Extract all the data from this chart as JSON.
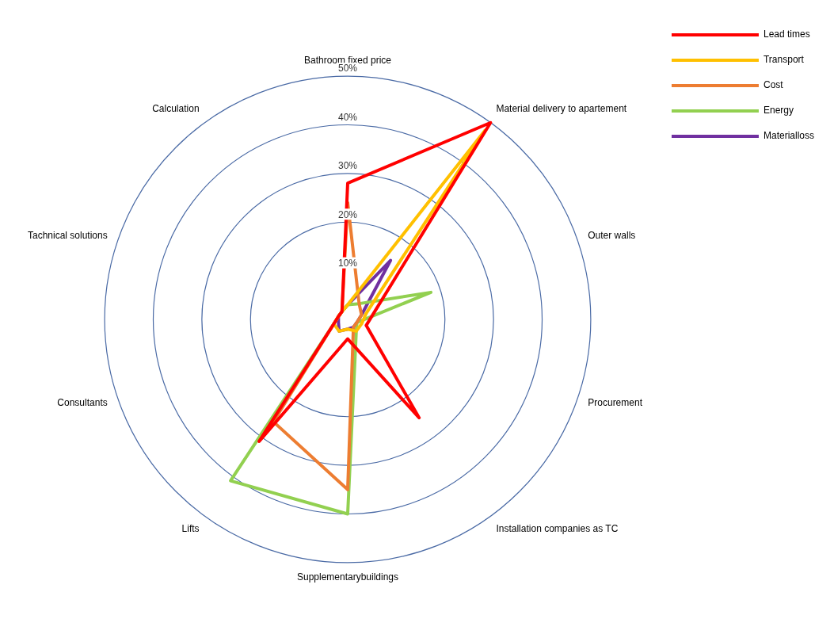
{
  "chart_data": {
    "type": "radar",
    "categories": [
      "Bathroom fixed price",
      "Material delivery to apartement",
      "Outer walls",
      "Procurement",
      "Installation companies as TC",
      "Supplementarybuildings",
      "Lifts",
      "Consultants",
      "Tachnical solutions",
      "Calculation"
    ],
    "series": [
      {
        "name": "Lead times",
        "color": "#ff0000",
        "values": [
          28,
          50,
          6,
          4,
          25,
          4,
          31,
          3,
          2,
          2
        ]
      },
      {
        "name": "Transport",
        "color": "#ffc000",
        "values": [
          3,
          48,
          4,
          3,
          3,
          2,
          3,
          3,
          2,
          2
        ]
      },
      {
        "name": "Cost",
        "color": "#ed7d31",
        "values": [
          24,
          4,
          3,
          2,
          2,
          35,
          26,
          3,
          2,
          2
        ]
      },
      {
        "name": "Energy",
        "color": "#92d050",
        "values": [
          3,
          4,
          18,
          2,
          3,
          40,
          41,
          3,
          2,
          2
        ]
      },
      {
        "name": "Materialloss",
        "color": "#7030a0",
        "values": [
          3,
          15,
          3,
          2,
          2,
          2,
          3,
          2,
          2,
          2
        ]
      }
    ],
    "ylim": [
      0,
      50
    ],
    "yticks": [
      {
        "value": 10,
        "label": "10%"
      },
      {
        "value": 20,
        "label": "20%"
      },
      {
        "value": 30,
        "label": "30%"
      },
      {
        "value": 40,
        "label": "40%"
      },
      {
        "value": 50,
        "label": "50%"
      }
    ],
    "grid": true,
    "legend": "top right",
    "marker": "none"
  }
}
